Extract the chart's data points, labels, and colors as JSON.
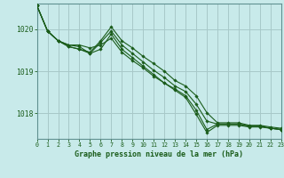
{
  "title": "Graphe pression niveau de la mer (hPa)",
  "bg_color": "#c8eaea",
  "plot_bg_color": "#c8eaea",
  "grid_color": "#a8c8c8",
  "line_color": "#1a5c1a",
  "marker_color": "#1a5c1a",
  "xlim": [
    0,
    23
  ],
  "ylim": [
    1017.4,
    1020.6
  ],
  "yticks": [
    1018,
    1019,
    1020
  ],
  "xticks": [
    0,
    1,
    2,
    3,
    4,
    5,
    6,
    7,
    8,
    9,
    10,
    11,
    12,
    13,
    14,
    15,
    16,
    17,
    18,
    19,
    20,
    21,
    22,
    23
  ],
  "series": [
    [
      1020.55,
      1019.95,
      1019.72,
      1019.62,
      1019.62,
      1019.55,
      1019.62,
      1019.78,
      1019.45,
      1019.25,
      1019.08,
      1018.88,
      1018.72,
      1018.55,
      1018.38,
      1017.98,
      1017.55,
      1017.72,
      1017.72,
      1017.72,
      1017.68,
      1017.68,
      1017.65,
      1017.62
    ],
    [
      1020.55,
      1019.95,
      1019.72,
      1019.62,
      1019.58,
      1019.42,
      1019.68,
      1019.95,
      1019.62,
      1019.42,
      1019.22,
      1019.02,
      1018.85,
      1018.65,
      1018.52,
      1018.22,
      1017.82,
      1017.75,
      1017.75,
      1017.75,
      1017.7,
      1017.7,
      1017.65,
      1017.62
    ],
    [
      1020.55,
      1019.95,
      1019.72,
      1019.58,
      1019.52,
      1019.45,
      1019.72,
      1020.05,
      1019.72,
      1019.55,
      1019.35,
      1019.18,
      1019.0,
      1018.78,
      1018.65,
      1018.42,
      1018.02,
      1017.78,
      1017.78,
      1017.78,
      1017.72,
      1017.72,
      1017.68,
      1017.65
    ],
    [
      1020.55,
      1019.95,
      1019.72,
      1019.58,
      1019.52,
      1019.42,
      1019.52,
      1019.88,
      1019.52,
      1019.32,
      1019.12,
      1018.92,
      1018.72,
      1018.58,
      1018.42,
      1018.08,
      1017.62,
      1017.75,
      1017.75,
      1017.75,
      1017.7,
      1017.7,
      1017.65,
      1017.62
    ]
  ]
}
